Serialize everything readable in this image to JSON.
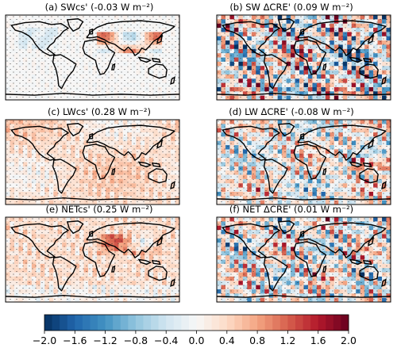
{
  "panels": [
    {
      "title": "(a) SWcs' (-0.03 W m⁻²)",
      "pattern": "swcs"
    },
    {
      "title": "(b) SW ΔCRE' (0.09 W m⁻²)",
      "pattern": "swcre"
    },
    {
      "title": "(c) LWcs' (0.28 W m⁻²)",
      "pattern": "lwcs"
    },
    {
      "title": "(d) LW ΔCRE' (-0.08 W m⁻²)",
      "pattern": "lwcre"
    },
    {
      "title": "(e) NETcs' (0.25 W m⁻²)",
      "pattern": "netcs"
    },
    {
      "title": "(f) NET ΔCRE' (0.01 W m⁻²)",
      "pattern": "netcre"
    }
  ],
  "colorbar": {
    "ticks": [
      "−2.0",
      "−1.6",
      "−1.2",
      "−0.8",
      "−0.4",
      "0.0",
      "0.4",
      "0.8",
      "1.2",
      "1.6",
      "2.0"
    ],
    "min": -2.0,
    "max": 2.0,
    "colors": [
      "#053061",
      "#2166ac",
      "#4393c3",
      "#92c5de",
      "#d1e5f0",
      "#f7f7f7",
      "#fddbc7",
      "#f4a582",
      "#d6604d",
      "#b2182b",
      "#67001f"
    ]
  },
  "map": {
    "projection": "equirectangular",
    "coastlines": true,
    "stippling": true
  }
}
